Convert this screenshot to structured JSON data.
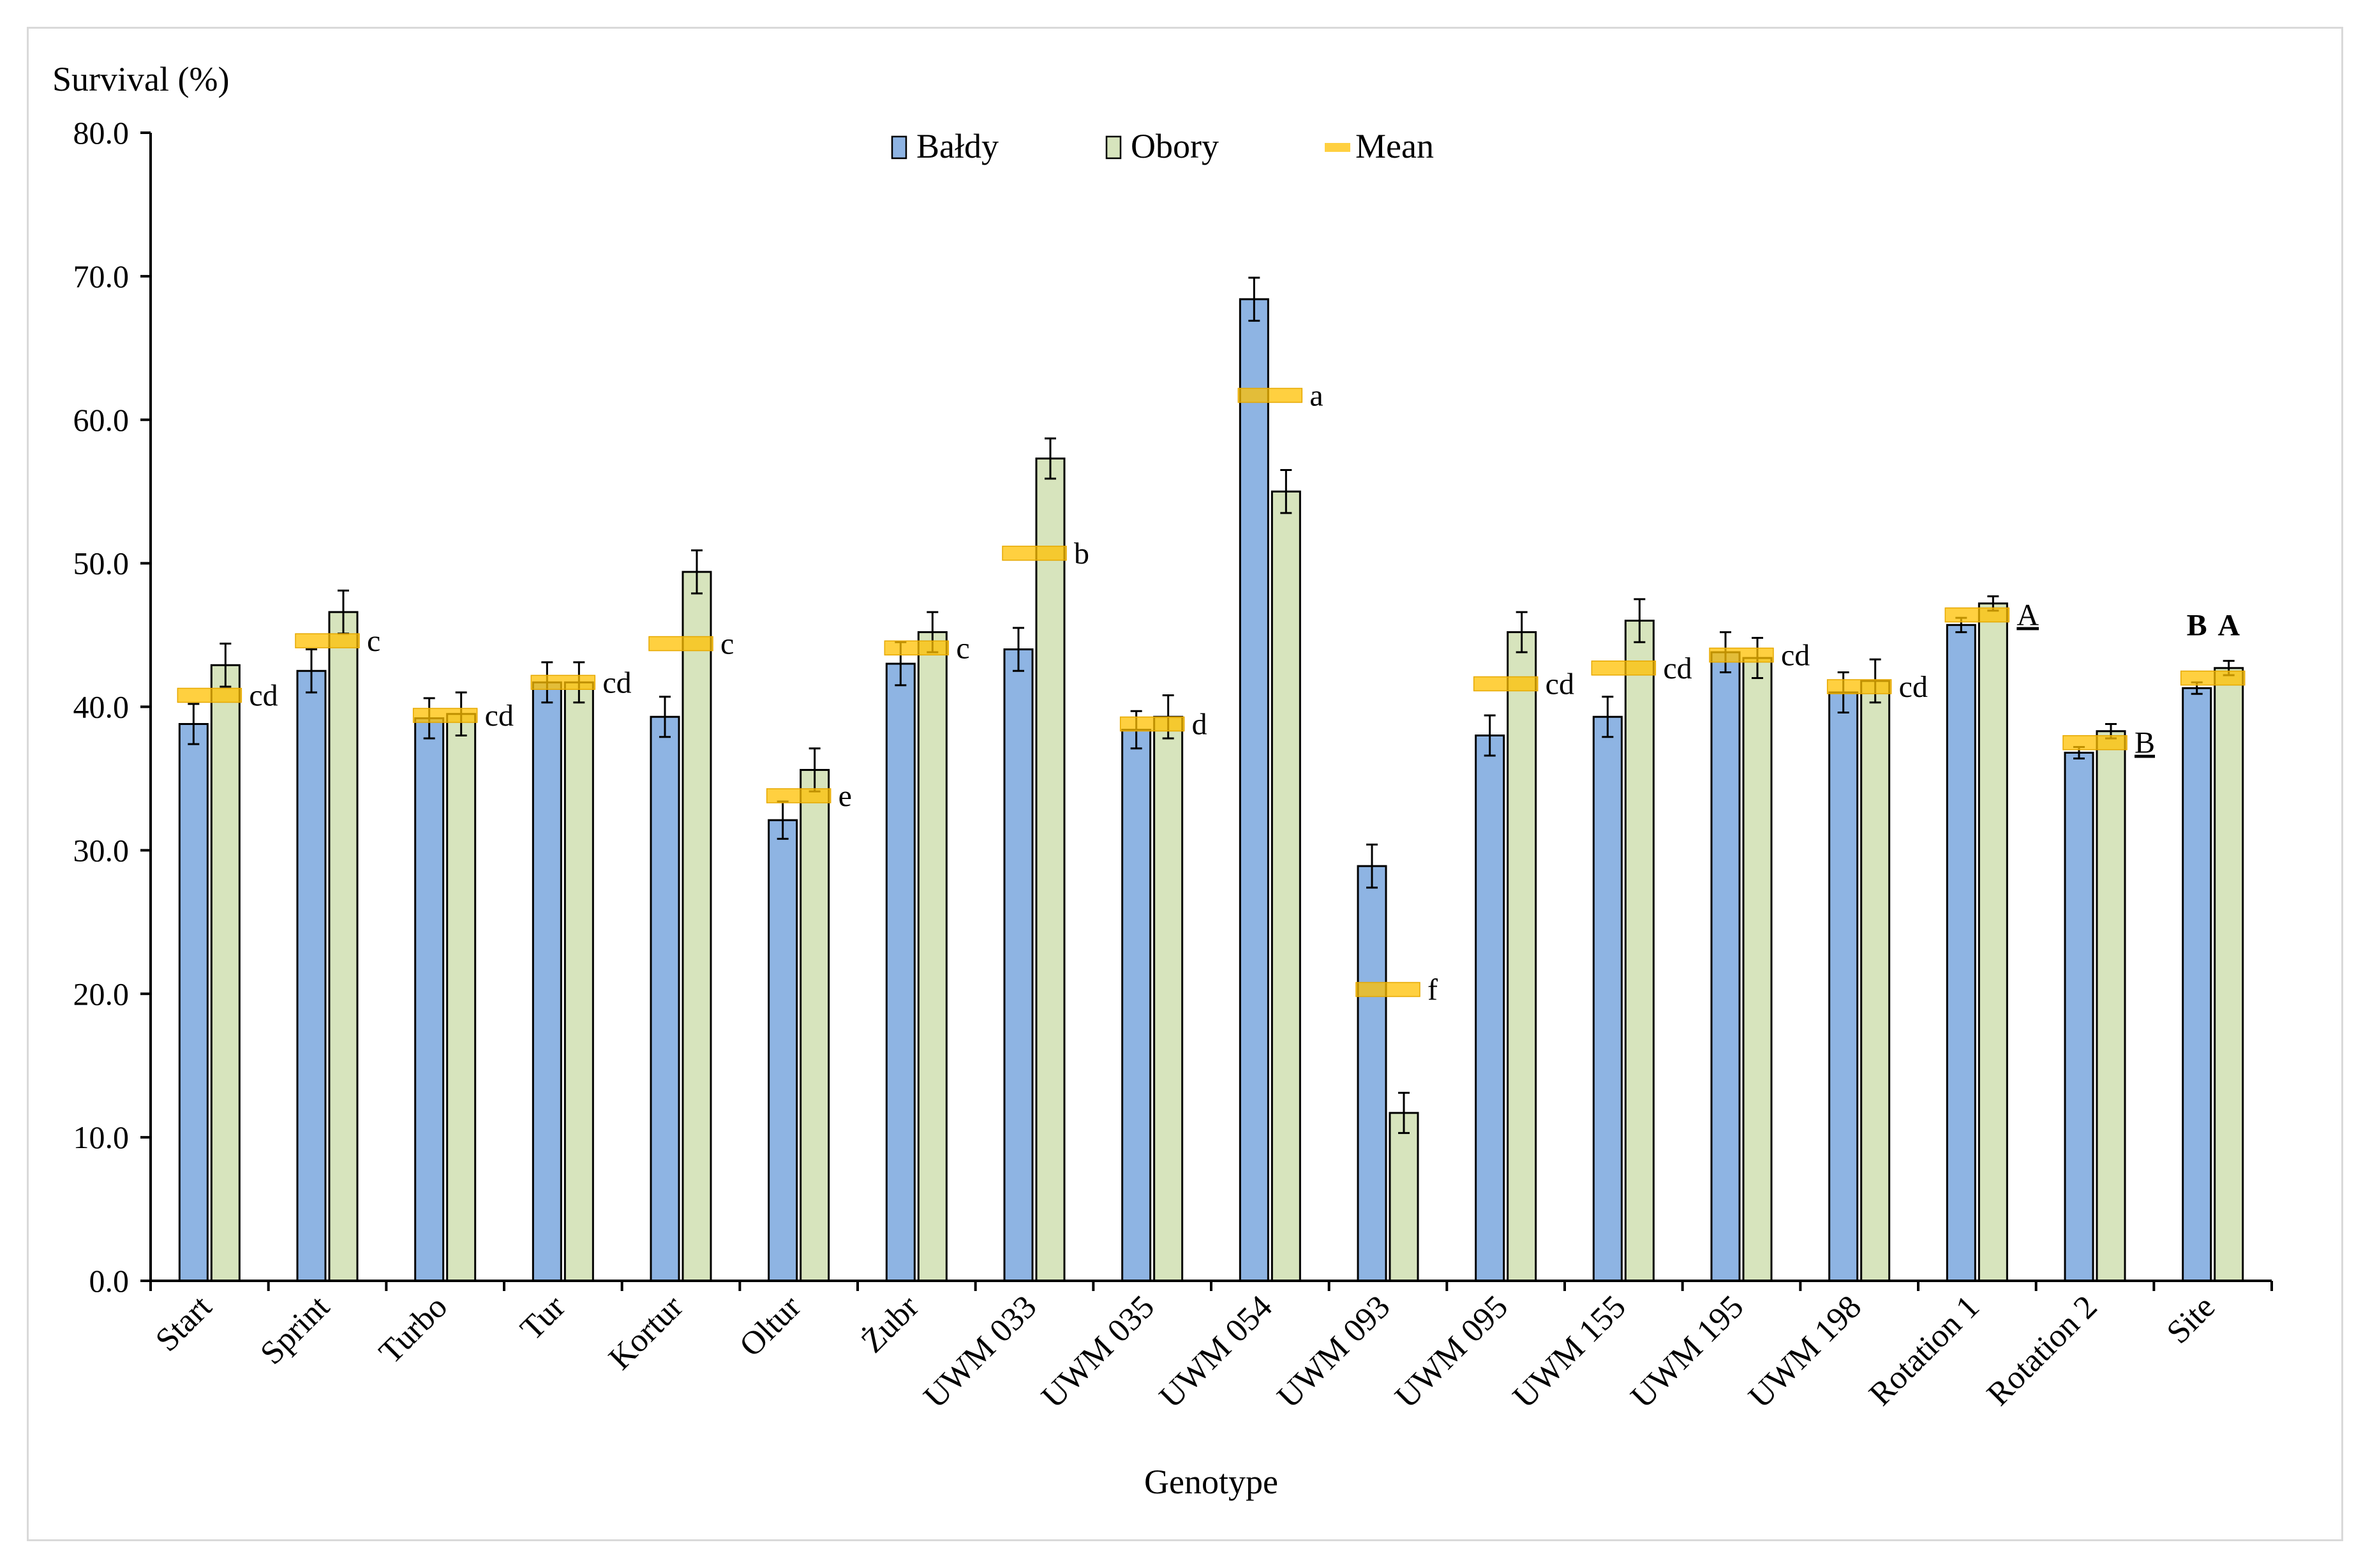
{
  "chart_data": {
    "type": "bar",
    "title": "",
    "ylabel": "Survival  (%)",
    "xlabel": "Genotype",
    "ylim": [
      0,
      80
    ],
    "yticks": [
      0,
      10,
      20,
      30,
      40,
      50,
      60,
      70,
      80
    ],
    "ytick_labels": [
      "0.0",
      "10.0",
      "20.0",
      "30.0",
      "40.0",
      "50.0",
      "60.0",
      "70.0",
      "80.0"
    ],
    "legend_position": "top-center",
    "categories": [
      "Start",
      "Sprint",
      "Turbo",
      "Tur",
      "Kortur",
      "Oltur",
      "Żubr",
      "UWM 033",
      "UWM 035",
      "UWM 054",
      "UWM 093",
      "UWM 095",
      "UWM 155",
      "UWM 195",
      "UWM 198",
      "Rotation 1",
      "Rotation 2",
      "Site"
    ],
    "series": [
      {
        "name": "Bałdy",
        "color": "#8eb4e3",
        "values": [
          38.8,
          42.5,
          39.2,
          41.7,
          39.3,
          32.1,
          43.0,
          44.0,
          38.4,
          68.4,
          28.9,
          38.0,
          39.3,
          43.8,
          41.0,
          45.7,
          36.8,
          41.3
        ],
        "errors": [
          1.4,
          1.5,
          1.4,
          1.4,
          1.4,
          1.3,
          1.5,
          1.5,
          1.3,
          1.5,
          1.5,
          1.4,
          1.4,
          1.4,
          1.4,
          0.5,
          0.4,
          0.4
        ]
      },
      {
        "name": "Obory",
        "color": "#d7e4bd",
        "values": [
          42.9,
          46.6,
          39.5,
          41.7,
          49.4,
          35.6,
          45.2,
          57.3,
          39.3,
          55.0,
          11.7,
          45.2,
          46.0,
          43.4,
          41.8,
          47.2,
          38.3,
          42.7
        ],
        "errors": [
          1.5,
          1.5,
          1.5,
          1.4,
          1.5,
          1.5,
          1.4,
          1.4,
          1.5,
          1.5,
          1.4,
          1.4,
          1.5,
          1.4,
          1.5,
          0.5,
          0.5,
          0.5
        ]
      }
    ],
    "mean": {
      "name": "Mean",
      "color": "#ffc000",
      "values": [
        40.8,
        44.6,
        39.4,
        41.7,
        44.4,
        33.8,
        44.1,
        50.7,
        38.8,
        61.7,
        20.3,
        41.6,
        42.7,
        43.6,
        41.4,
        46.4,
        37.5,
        42.0
      ]
    },
    "letters": [
      "cd",
      "c",
      "cd",
      "cd",
      "c",
      "e",
      "c",
      "b",
      "d",
      "a",
      "f",
      "cd",
      "cd",
      "cd",
      "cd",
      "A",
      "B",
      ""
    ],
    "site_letters": [
      "B",
      "A"
    ]
  }
}
